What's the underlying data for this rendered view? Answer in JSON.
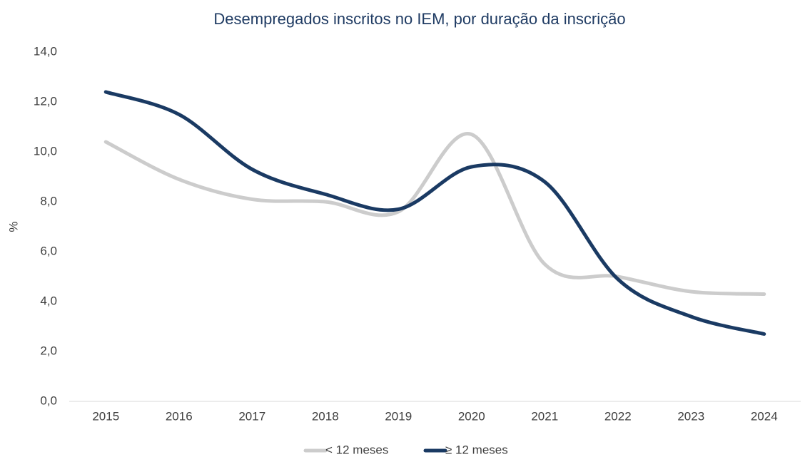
{
  "chart_data": {
    "type": "line",
    "title": "Desempregados inscritos no IEM, por duração da inscrição",
    "y_label": "%",
    "categories": [
      "2015",
      "2016",
      "2017",
      "2018",
      "2019",
      "2020",
      "2021",
      "2022",
      "2023",
      "2024"
    ],
    "series": [
      {
        "name": "< 12 meses",
        "color": "#cccccc",
        "values": [
          10.4,
          8.9,
          8.1,
          8.0,
          7.6,
          10.7,
          5.5,
          5.0,
          4.4,
          4.3
        ]
      },
      {
        "name": "≥ 12 meses",
        "color": "#1a3a63",
        "values": [
          12.4,
          11.5,
          9.3,
          8.3,
          7.7,
          9.4,
          8.8,
          4.9,
          3.4,
          2.7
        ]
      }
    ],
    "ylim": [
      0,
      14
    ],
    "yticks": [
      {
        "value": 0,
        "label": "0,0"
      },
      {
        "value": 2,
        "label": "2,0"
      },
      {
        "value": 4,
        "label": "4,0"
      },
      {
        "value": 6,
        "label": "6,0"
      },
      {
        "value": 8,
        "label": "8,0"
      },
      {
        "value": 10,
        "label": "10,0"
      },
      {
        "value": 12,
        "label": "12,0"
      },
      {
        "value": 14,
        "label": "14,0"
      }
    ],
    "grid": false,
    "legend": "bottom"
  }
}
